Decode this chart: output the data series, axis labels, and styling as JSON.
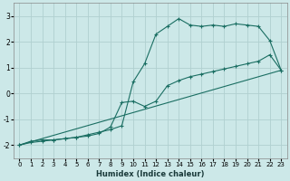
{
  "xlabel": "Humidex (Indice chaleur)",
  "bg_color": "#cce8e8",
  "grid_color": "#b0d0d0",
  "line_color": "#1a6e62",
  "xlim": [
    -0.5,
    23.5
  ],
  "ylim": [
    -2.5,
    3.5
  ],
  "xticks": [
    0,
    1,
    2,
    3,
    4,
    5,
    6,
    7,
    8,
    9,
    10,
    11,
    12,
    13,
    14,
    15,
    16,
    17,
    18,
    19,
    20,
    21,
    22,
    23
  ],
  "yticks": [
    -2,
    -1,
    0,
    1,
    2,
    3
  ],
  "line1_x": [
    0,
    1,
    2,
    3,
    4,
    5,
    6,
    7,
    8,
    9,
    10,
    11,
    12,
    13,
    14,
    15,
    16,
    17,
    18,
    19,
    20,
    21,
    22,
    23
  ],
  "line1_y": [
    -2.0,
    -1.9,
    -1.85,
    -1.8,
    -1.75,
    -1.7,
    -1.6,
    -1.5,
    -1.4,
    -1.25,
    0.45,
    1.15,
    2.3,
    2.6,
    2.9,
    2.65,
    2.6,
    2.65,
    2.6,
    2.7,
    2.65,
    2.6,
    2.05,
    0.9
  ],
  "line2_x": [
    0,
    1,
    2,
    3,
    4,
    5,
    6,
    7,
    8,
    9,
    10,
    11,
    12,
    13,
    14,
    15,
    16,
    17,
    18,
    19,
    20,
    21,
    22,
    23
  ],
  "line2_y": [
    -2.0,
    -1.85,
    -1.8,
    -1.8,
    -1.75,
    -1.7,
    -1.65,
    -1.55,
    -1.3,
    -0.35,
    -0.3,
    -0.5,
    -0.3,
    0.3,
    0.5,
    0.65,
    0.75,
    0.85,
    0.95,
    1.05,
    1.15,
    1.25,
    1.5,
    0.9
  ],
  "line3_x": [
    0,
    23
  ],
  "line3_y": [
    -2.0,
    0.9
  ]
}
